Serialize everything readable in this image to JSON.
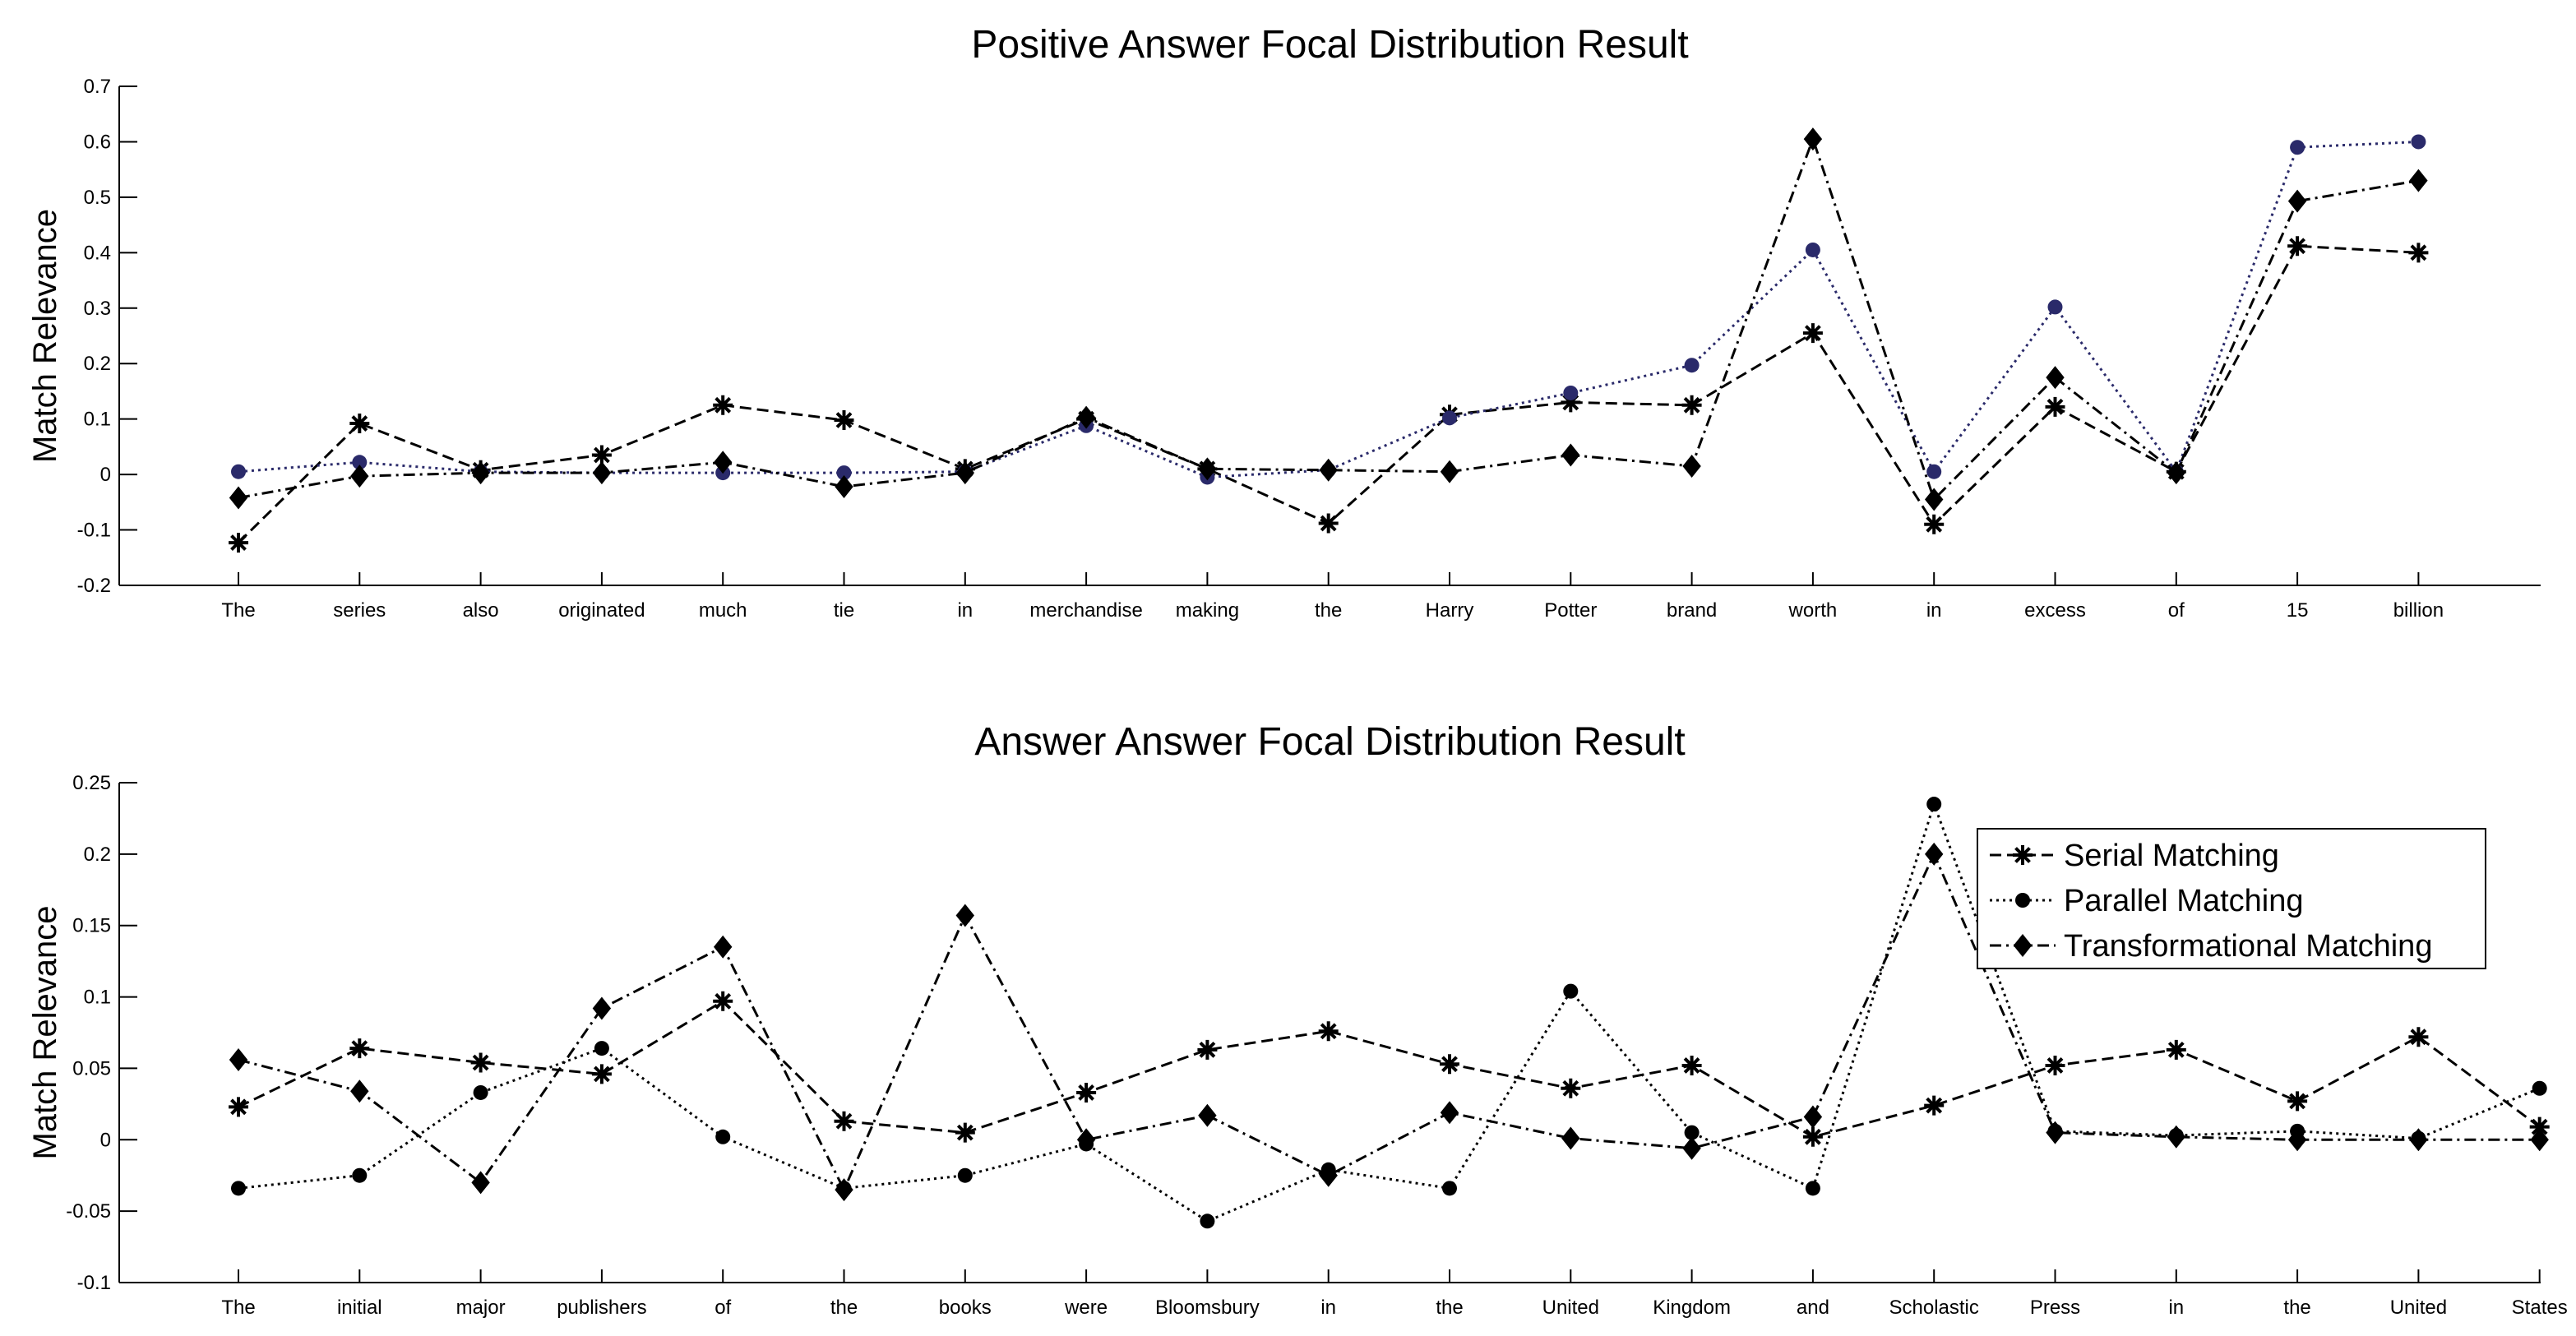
{
  "chart_data": [
    {
      "type": "line",
      "title": "Positive Answer Focal Distribution Result",
      "xlabel": "",
      "ylabel": "Match Relevance",
      "ylim": [
        -0.2,
        0.7
      ],
      "yticks": [
        "-0.2",
        "-0.1",
        "0",
        "0.1",
        "0.2",
        "0.3",
        "0.4",
        "0.5",
        "0.6",
        "0.7"
      ],
      "grid": false,
      "categories": [
        "The",
        "series",
        "also",
        "originated",
        "much",
        "tie",
        "in",
        "merchandise",
        "making",
        "the",
        "Harry",
        "Potter",
        "brand",
        "worth",
        "in",
        "excess",
        "of",
        "15",
        "billion"
      ],
      "series": [
        {
          "name": "Serial Matching",
          "marker": "star",
          "dash": "dashed",
          "color": "#000000",
          "values": [
            -0.123,
            0.092,
            0.008,
            0.035,
            0.125,
            0.098,
            0.01,
            0.1,
            0.01,
            -0.088,
            0.108,
            0.13,
            0.125,
            0.255,
            -0.09,
            0.122,
            0.005,
            0.412,
            0.4
          ]
        },
        {
          "name": "Parallel Matching",
          "marker": "circle",
          "dash": "dotted",
          "color": "#2a2a6a",
          "values": [
            0.005,
            0.022,
            0.005,
            0.003,
            0.003,
            0.003,
            0.005,
            0.088,
            -0.005,
            0.008,
            0.102,
            0.147,
            0.197,
            0.405,
            0.005,
            0.302,
            0.005,
            0.59,
            0.6
          ]
        },
        {
          "name": "Transformational Matching",
          "marker": "diamond",
          "dash": "dashdot",
          "color": "#000000",
          "values": [
            -0.042,
            -0.003,
            0.003,
            0.003,
            0.022,
            -0.022,
            0.003,
            0.103,
            0.01,
            0.008,
            0.005,
            0.035,
            0.015,
            0.605,
            -0.045,
            0.175,
            0.003,
            0.493,
            0.53
          ]
        }
      ]
    },
    {
      "type": "line",
      "title": "Answer Answer Focal Distribution Result",
      "xlabel": "",
      "ylabel": "Match Relevance",
      "ylim": [
        -0.1,
        0.25
      ],
      "yticks": [
        "-0.1",
        "-0.05",
        "0",
        "0.05",
        "0.1",
        "0.15",
        "0.2",
        "0.25"
      ],
      "grid": false,
      "legend_position": "top-right",
      "categories": [
        "The",
        "initial",
        "major",
        "publishers",
        "of",
        "the",
        "books",
        "were",
        "Bloomsbury",
        "in",
        "the",
        "United",
        "Kingdom",
        "and",
        "Scholastic",
        "Press",
        "in",
        "the",
        "United",
        "States"
      ],
      "series": [
        {
          "name": "Serial Matching",
          "marker": "star",
          "dash": "dashed",
          "color": "#000000",
          "values": [
            0.023,
            0.064,
            0.054,
            0.046,
            0.097,
            0.013,
            0.005,
            0.033,
            0.063,
            0.076,
            0.053,
            0.036,
            0.052,
            0.002,
            0.024,
            0.052,
            0.063,
            0.027,
            0.072,
            0.009
          ]
        },
        {
          "name": "Parallel Matching",
          "marker": "circle",
          "dash": "dotted",
          "color": "#000000",
          "values": [
            -0.034,
            -0.025,
            0.033,
            0.064,
            0.002,
            -0.034,
            -0.025,
            -0.003,
            -0.057,
            -0.021,
            -0.034,
            0.104,
            0.005,
            -0.034,
            0.235,
            0.006,
            0.003,
            0.006,
            0.001,
            0.036
          ]
        },
        {
          "name": "Transformational Matching",
          "marker": "diamond",
          "dash": "dashdot",
          "color": "#000000",
          "values": [
            0.056,
            0.034,
            -0.03,
            0.092,
            0.135,
            -0.035,
            0.157,
            0.0,
            0.017,
            -0.025,
            0.019,
            0.001,
            -0.006,
            0.016,
            0.2,
            0.005,
            0.002,
            0.0,
            0.0,
            0.0
          ]
        }
      ]
    }
  ]
}
